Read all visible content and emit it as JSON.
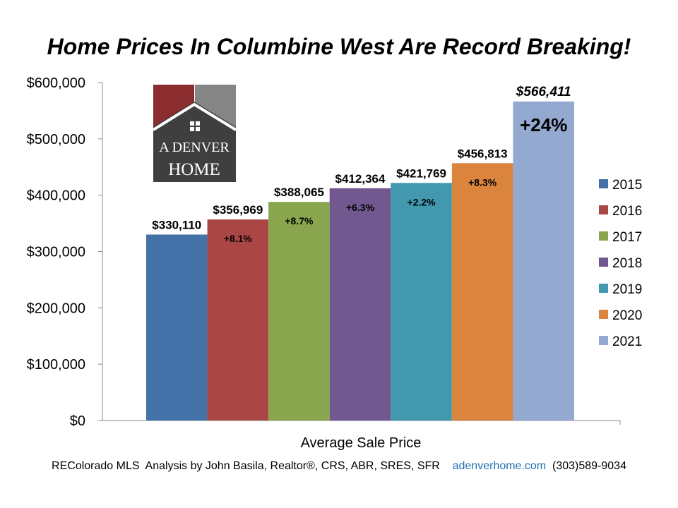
{
  "title": "Home Prices In Columbine West Are Record Breaking!",
  "logo": {
    "line1": "A DENVER",
    "line2": "HOME"
  },
  "footer": {
    "credit": "REColorado MLS  Analysis by John Basila, Realtor®, CRS, ABR, SRES, SFR",
    "website": "adenverhome.com",
    "phone": "(303)589-9034"
  },
  "chart_data": {
    "type": "bar",
    "title": "Home Prices In Columbine West Are Record Breaking!",
    "xlabel": "Average Sale Price",
    "ylabel": "",
    "ylim": [
      0,
      600000
    ],
    "yticks": [
      "$0",
      "$100,000",
      "$200,000",
      "$300,000",
      "$400,000",
      "$500,000",
      "$600,000"
    ],
    "legend_position": "right",
    "grid": false,
    "series": [
      {
        "name": "2015",
        "value": 330110,
        "value_label": "$330,110",
        "change_label": "",
        "color": "#4472a8"
      },
      {
        "name": "2016",
        "value": 356969,
        "value_label": "$356,969",
        "change_label": "+8.1%",
        "color": "#aa4644"
      },
      {
        "name": "2017",
        "value": 388065,
        "value_label": "$388,065",
        "change_label": "+8.7%",
        "color": "#89a54e"
      },
      {
        "name": "2018",
        "value": 412364,
        "value_label": "$412,364",
        "change_label": "+6.3%",
        "color": "#71588f"
      },
      {
        "name": "2019",
        "value": 421769,
        "value_label": "$421,769",
        "change_label": "+2.2%",
        "color": "#4198af"
      },
      {
        "name": "2020",
        "value": 456813,
        "value_label": "$456,813",
        "change_label": "+8.3%",
        "color": "#db843d"
      },
      {
        "name": "2021",
        "value": 566411,
        "value_label": "$566,411",
        "change_label": "+24%",
        "color": "#93a9cf"
      }
    ]
  }
}
